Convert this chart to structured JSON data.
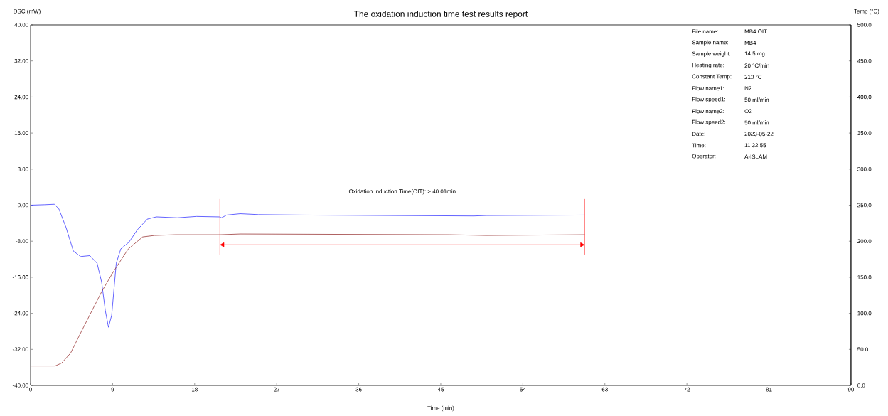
{
  "chart_data": {
    "type": "line",
    "title": "The oxidation induction time test results report",
    "xlabel": "Time (min)",
    "ylabel": "DSC (mW)",
    "y2label": "Temp (°C)",
    "xlim": [
      0,
      90
    ],
    "xticks": [
      0,
      9,
      18,
      27,
      36,
      45,
      54,
      63,
      72,
      81,
      90
    ],
    "ylim": [
      -40,
      40
    ],
    "yticks": [
      {
        "value": -40,
        "label": "-40.00"
      },
      {
        "value": -32,
        "label": "-32.00"
      },
      {
        "value": -24,
        "label": "-24.00"
      },
      {
        "value": -16,
        "label": "-16.00"
      },
      {
        "value": -8,
        "label": "-8.00"
      },
      {
        "value": 0,
        "label": "0.00"
      },
      {
        "value": 8,
        "label": "8.00"
      },
      {
        "value": 16,
        "label": "16.00"
      },
      {
        "value": 24,
        "label": "24.00"
      },
      {
        "value": 32,
        "label": "32.00"
      },
      {
        "value": 40,
        "label": "40.00"
      }
    ],
    "y2lim": [
      0,
      500
    ],
    "y2ticks": [
      {
        "value": 0,
        "label": "0.0"
      },
      {
        "value": 50,
        "label": "50.0"
      },
      {
        "value": 100,
        "label": "100.0"
      },
      {
        "value": 150,
        "label": "150.0"
      },
      {
        "value": 200,
        "label": "200.0"
      },
      {
        "value": 250,
        "label": "250.0"
      },
      {
        "value": 300,
        "label": "300.0"
      },
      {
        "value": 350,
        "label": "350.0"
      },
      {
        "value": 400,
        "label": "400.0"
      },
      {
        "value": 450,
        "label": "450.0"
      },
      {
        "value": 500,
        "label": "500.0"
      }
    ],
    "series": [
      {
        "color": "#3c3cff",
        "x": [
          0,
          1.5,
          2.6,
          3.1,
          3.9,
          4.7,
          5.5,
          6.5,
          7.3,
          7.8,
          8.2,
          8.55,
          8.9,
          9.4,
          9.9,
          10.8,
          11.7,
          12.8,
          13.8,
          16.1,
          18.2,
          20.7,
          20.96,
          21.5,
          23.0,
          25,
          30,
          48.6,
          50,
          60.8
        ],
        "values": [
          0.0,
          0.1,
          0.2,
          -0.8,
          -5.0,
          -10.2,
          -11.4,
          -11.2,
          -12.9,
          -17.1,
          -23.4,
          -27.1,
          -24.4,
          -12.9,
          -9.7,
          -8.2,
          -5.5,
          -3.1,
          -2.6,
          -2.8,
          -2.5,
          -2.6,
          -2.8,
          -2.2,
          -1.9,
          -2.1,
          -2.2,
          -2.4,
          -2.3,
          -2.2
        ]
      },
      {
        "color": "#9b3a3a",
        "axis": "y2",
        "x": [
          0,
          2.7,
          3.4,
          4.4,
          5.7,
          7.8,
          9.1,
          10.7,
          12.3,
          13.6,
          15.9,
          20.8,
          23,
          46,
          50,
          60.8
        ],
        "values": [
          27,
          27,
          31,
          45,
          78,
          130,
          158,
          189,
          206,
          208,
          209,
          209,
          210,
          209,
          208,
          209
        ]
      }
    ],
    "ref_lines": [
      {
        "axis": "x",
        "value": 20.77,
        "color": "#ff0000"
      },
      {
        "axis": "x",
        "value": 60.78,
        "color": "#ff0000"
      }
    ],
    "annotations": [
      "Oxidation Induction Time(OIT):  >  40.01min",
      "File name:",
      "MB4.OIT",
      "Sample name:",
      "MB4",
      "Sample weight:",
      "14.5 mg",
      "Heating rate:",
      "20 °C/min",
      "Constant Temp:",
      "210 °C",
      "Flow name1:",
      "N2",
      "Flow speed1:",
      "50 ml/min",
      "Flow name2:",
      "O2",
      "Flow speed2:",
      "50 ml/min",
      "Date:",
      "2023-05-22",
      "Time:",
      "11:32:55",
      "Operator:",
      "A-ISLAM"
    ]
  }
}
